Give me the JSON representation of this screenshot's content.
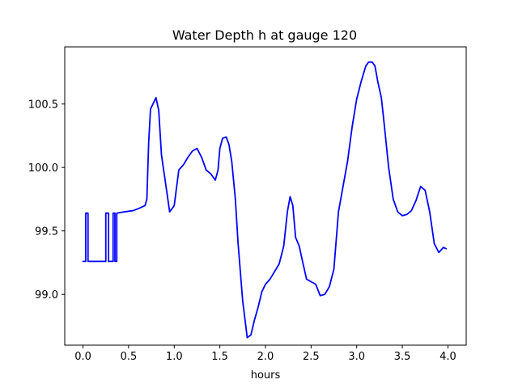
{
  "chart_data": {
    "type": "line",
    "title": "Water Depth h at gauge 120",
    "xlabel": "hours",
    "ylabel": "",
    "xlim": [
      -0.2,
      4.2
    ],
    "ylim": [
      98.6,
      100.95
    ],
    "xticks": [
      0.0,
      0.5,
      1.0,
      1.5,
      2.0,
      2.5,
      3.0,
      3.5,
      4.0
    ],
    "xtick_labels": [
      "0.0",
      "0.5",
      "1.0",
      "1.5",
      "2.0",
      "2.5",
      "3.0",
      "3.5",
      "4.0"
    ],
    "yticks": [
      99.0,
      99.5,
      100.0,
      100.5
    ],
    "ytick_labels": [
      "99.0",
      "99.5",
      "100.0",
      "100.5"
    ],
    "grid": false,
    "legend": "none",
    "series": [
      {
        "color": "#0000ff",
        "x": [
          0.0,
          0.03,
          0.03,
          0.055,
          0.055,
          0.25,
          0.25,
          0.28,
          0.28,
          0.33,
          0.33,
          0.35,
          0.35,
          0.37,
          0.37,
          0.45,
          0.55,
          0.62,
          0.68,
          0.7,
          0.72,
          0.74,
          0.76,
          0.8,
          0.83,
          0.86,
          0.9,
          0.95,
          1.0,
          1.05,
          1.1,
          1.15,
          1.2,
          1.25,
          1.3,
          1.35,
          1.4,
          1.45,
          1.48,
          1.5,
          1.53,
          1.57,
          1.6,
          1.63,
          1.67,
          1.7,
          1.75,
          1.8,
          1.84,
          1.88,
          1.92,
          1.96,
          2.0,
          2.05,
          2.1,
          2.15,
          2.2,
          2.24,
          2.27,
          2.3,
          2.33,
          2.37,
          2.4,
          2.45,
          2.5,
          2.55,
          2.6,
          2.65,
          2.7,
          2.75,
          2.8,
          2.85,
          2.9,
          2.95,
          3.0,
          3.05,
          3.1,
          3.13,
          3.17,
          3.2,
          3.23,
          3.27,
          3.3,
          3.35,
          3.4,
          3.45,
          3.5,
          3.55,
          3.6,
          3.65,
          3.7,
          3.75,
          3.8,
          3.85,
          3.9,
          3.95,
          3.98
        ],
        "y": [
          99.26,
          99.26,
          99.64,
          99.64,
          99.26,
          99.26,
          99.64,
          99.64,
          99.26,
          99.26,
          99.64,
          99.64,
          99.26,
          99.26,
          99.64,
          99.65,
          99.66,
          99.68,
          99.7,
          99.75,
          100.2,
          100.46,
          100.49,
          100.55,
          100.45,
          100.1,
          99.9,
          99.65,
          99.7,
          99.98,
          100.02,
          100.08,
          100.13,
          100.15,
          100.08,
          99.98,
          99.95,
          99.9,
          99.98,
          100.15,
          100.23,
          100.24,
          100.18,
          100.05,
          99.75,
          99.4,
          98.95,
          98.66,
          98.68,
          98.8,
          98.9,
          99.02,
          99.08,
          99.12,
          99.18,
          99.24,
          99.38,
          99.65,
          99.77,
          99.7,
          99.45,
          99.38,
          99.28,
          99.12,
          99.1,
          99.08,
          98.99,
          99.0,
          99.06,
          99.2,
          99.65,
          99.85,
          100.05,
          100.32,
          100.54,
          100.68,
          100.8,
          100.83,
          100.83,
          100.8,
          100.68,
          100.55,
          100.35,
          100.0,
          99.75,
          99.65,
          99.62,
          99.63,
          99.66,
          99.74,
          99.85,
          99.82,
          99.65,
          99.4,
          99.33,
          99.37,
          99.36
        ]
      }
    ]
  }
}
